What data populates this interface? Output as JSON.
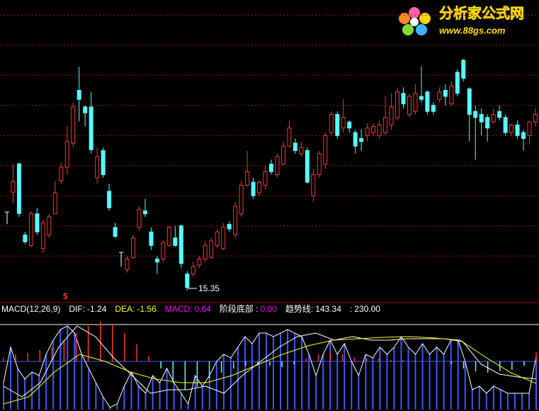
{
  "logo": {
    "title": "分析家公式网",
    "url": "www.88gs.com"
  },
  "chart_data": [
    {
      "type": "candlestick",
      "up_color": "#ff3232",
      "down_color": "#54ffff",
      "flat_color": "#ffffff",
      "ylim": [
        15,
        25
      ],
      "ygrid": [
        24.5,
        23.5,
        22.5,
        21.5,
        20.5,
        19.5,
        18.5,
        17.5,
        16.5
      ],
      "grid_color": "#a01010",
      "annotations": [
        {
          "text": "15.35"
        },
        {
          "text": "$"
        }
      ],
      "ohlc": [
        [
          17.96,
          17.96,
          17.56,
          17.96
        ],
        [
          18.62,
          19.56,
          18.26,
          18.97
        ],
        [
          19.56,
          19.6,
          17.8,
          17.91
        ],
        [
          17.2,
          17.3,
          16.9,
          16.97
        ],
        [
          16.85,
          18.0,
          16.8,
          17.91
        ],
        [
          17.9,
          18.1,
          17.2,
          17.3
        ],
        [
          16.75,
          17.7,
          16.6,
          17.6
        ],
        [
          17.2,
          17.9,
          17.1,
          17.8
        ],
        [
          17.9,
          19.0,
          17.9,
          18.6
        ],
        [
          19.0,
          19.6,
          18.9,
          19.45
        ],
        [
          19.45,
          20.8,
          19.2,
          20.3
        ],
        [
          20.25,
          21.6,
          20.1,
          21.45
        ],
        [
          22.0,
          22.78,
          20.97,
          21.7
        ],
        [
          21.45,
          21.5,
          20.8,
          21.25
        ],
        [
          21.45,
          21.95,
          19.9,
          20.03
        ],
        [
          19.1,
          20.1,
          18.9,
          19.8
        ],
        [
          20.0,
          20.1,
          19.1,
          19.2
        ],
        [
          18.65,
          18.9,
          18.0,
          18.1
        ],
        [
          17.45,
          17.6,
          17.1,
          17.15
        ],
        [
          16.62,
          16.62,
          16.15,
          16.62
        ],
        [
          16.05,
          16.5,
          15.95,
          16.4
        ],
        [
          16.45,
          17.2,
          16.4,
          17.1
        ],
        [
          17.45,
          18.15,
          17.35,
          18.05
        ],
        [
          18.0,
          18.4,
          17.8,
          17.9
        ],
        [
          17.3,
          17.45,
          16.7,
          16.85
        ],
        [
          16.4,
          16.5,
          15.9,
          16.3
        ],
        [
          16.4,
          17.0,
          16.3,
          16.95
        ],
        [
          16.85,
          17.5,
          16.8,
          17.45
        ],
        [
          17.1,
          17.5,
          16.8,
          16.85
        ],
        [
          17.5,
          17.55,
          16.1,
          16.25
        ],
        [
          15.9,
          16.0,
          15.35,
          15.45
        ],
        [
          15.9,
          16.3,
          15.8,
          16.15
        ],
        [
          16.2,
          16.5,
          16.1,
          16.4
        ],
        [
          16.4,
          17.0,
          16.3,
          16.85
        ],
        [
          16.45,
          17.1,
          16.4,
          17.0
        ],
        [
          16.85,
          17.4,
          16.75,
          17.3
        ],
        [
          16.75,
          17.6,
          16.7,
          17.45
        ],
        [
          17.55,
          17.65,
          17.3,
          17.4
        ],
        [
          17.2,
          18.3,
          17.1,
          18.15
        ],
        [
          17.9,
          19.0,
          17.8,
          18.85
        ],
        [
          18.85,
          20.0,
          18.8,
          19.3
        ],
        [
          18.95,
          19.1,
          18.4,
          18.5
        ],
        [
          18.6,
          19.0,
          18.5,
          18.95
        ],
        [
          18.85,
          19.5,
          18.7,
          19.3
        ],
        [
          19.55,
          19.7,
          19.2,
          19.3
        ],
        [
          19.2,
          19.9,
          19.1,
          19.8
        ],
        [
          19.55,
          20.3,
          19.5,
          20.15
        ],
        [
          20.15,
          21.0,
          20.1,
          20.75
        ],
        [
          20.25,
          20.4,
          19.9,
          20.0
        ],
        [
          19.9,
          20.3,
          19.8,
          20.1
        ],
        [
          20.0,
          20.1,
          18.9,
          18.95
        ],
        [
          18.5,
          19.4,
          18.3,
          19.2
        ],
        [
          19.2,
          20.0,
          19.1,
          19.9
        ],
        [
          19.55,
          20.6,
          19.4,
          20.5
        ],
        [
          20.6,
          21.3,
          20.5,
          21.2
        ],
        [
          21.2,
          21.3,
          20.4,
          20.5
        ],
        [
          20.75,
          21.7,
          20.6,
          21.1
        ],
        [
          20.95,
          21.0,
          20.6,
          20.75
        ],
        [
          20.6,
          20.7,
          19.9,
          20.15
        ],
        [
          20.4,
          20.7,
          20.0,
          20.3
        ],
        [
          20.5,
          20.9,
          20.3,
          20.75
        ],
        [
          20.6,
          20.9,
          20.5,
          20.8
        ],
        [
          20.5,
          21.0,
          20.4,
          20.85
        ],
        [
          20.6,
          21.8,
          20.5,
          21.1
        ],
        [
          20.85,
          21.9,
          20.7,
          21.45
        ],
        [
          21.1,
          22.1,
          21.0,
          21.95
        ],
        [
          21.9,
          22.1,
          21.4,
          21.55
        ],
        [
          21.2,
          21.9,
          21.1,
          21.8
        ],
        [
          21.3,
          22.2,
          21.2,
          21.9
        ],
        [
          21.8,
          22.8,
          21.6,
          21.7
        ],
        [
          21.95,
          22.0,
          21.2,
          21.3
        ],
        [
          21.5,
          21.6,
          21.2,
          21.3
        ],
        [
          21.7,
          22.1,
          21.6,
          21.95
        ],
        [
          22.0,
          22.2,
          21.5,
          21.8
        ],
        [
          21.55,
          22.3,
          21.5,
          22.15
        ],
        [
          22.6,
          22.7,
          21.8,
          21.9
        ],
        [
          23.0,
          23.05,
          22.3,
          22.4
        ],
        [
          22.05,
          22.1,
          20.3,
          21.2
        ],
        [
          21.3,
          21.5,
          19.7,
          21.1
        ],
        [
          21.2,
          21.4,
          20.5,
          20.95
        ],
        [
          21.1,
          21.2,
          20.3,
          20.75
        ],
        [
          20.95,
          21.4,
          20.9,
          21.2
        ],
        [
          21.3,
          21.5,
          21.0,
          21.1
        ],
        [
          21.1,
          21.2,
          20.5,
          20.6
        ],
        [
          20.6,
          20.9,
          20.5,
          20.85
        ],
        [
          20.85,
          21.0,
          20.4,
          20.5
        ],
        [
          20.6,
          20.7,
          20.0,
          20.4
        ],
        [
          20.5,
          21.0,
          20.2,
          20.95
        ],
        [
          20.95,
          21.4,
          20.8,
          21.2
        ]
      ]
    },
    {
      "type": "macd",
      "title": "MACD(12,26,9)",
      "ylim": [
        -3.4,
        4.0
      ],
      "trend_ylim": [
        0,
        283.7
      ],
      "series": [
        {
          "name": "DIF:",
          "kind": "line",
          "color": "#ffffff",
          "values": [
            -1.75,
            -2.5,
            -1.5,
            1.0,
            2.5,
            1.75,
            0.25,
            -1.0,
            -2.25,
            -2.0,
            -2.0,
            -1.75,
            -2.25,
            -1.0,
            0,
            1.0,
            1.75,
            2.0,
            1.5,
            1.75,
            1.5,
            1.5,
            1.6,
            1.6,
            1.6,
            1.4,
            -0.2,
            -0.9,
            -1.1,
            -1.24
          ]
        },
        {
          "name": "DEA:",
          "kind": "line",
          "color": "#ffff00",
          "values": [
            -3.0,
            -2.5,
            -0.75,
            0.5,
            0,
            -0.75,
            -1.25,
            -1.5,
            -1.5,
            -1.0,
            -0.25,
            0.5,
            1.1,
            1.5,
            1.6,
            1.7,
            1.75,
            1.65,
            1.5,
            0.3,
            -0.8,
            -1.56
          ]
        },
        {
          "name": "MACD:",
          "kind": "histogram",
          "color": "#ff00ff",
          "up_color": "#ff3232",
          "down_color": "#54ffff",
          "values": [
            0.3,
            0.5,
            0.6,
            0.8,
            1.0,
            1.5,
            2.0,
            2.5,
            2.8,
            2.6,
            2.0,
            1.2,
            0.4,
            -0.5,
            -1.5,
            -2.0,
            -1.8,
            -1.2,
            -0.8,
            -0.5,
            -0.3,
            -0.2,
            -0.3,
            -0.4,
            -0.2,
            0.2,
            0.5,
            0.6,
            0.5,
            0.3,
            0.2,
            0.2,
            0.1,
            0.1,
            0.1,
            0.0,
            0.0,
            -0.2,
            -0.5,
            -0.7,
            -0.8,
            -0.7,
            -0.6,
            -0.3,
            0.64
          ]
        },
        {
          "name": "阶段底部 :",
          "kind": "value",
          "name_color": "#ffffff",
          "color": "#ff00ff",
          "values": [
            0
          ],
          "value_labels": [
            "0.00"
          ]
        },
        {
          "name": "趋势线:",
          "kind": "trend",
          "color": "#3c5aff",
          "outline_color": "#ffffff",
          "text_color": "#ffffff",
          "values": [
            72.8,
            168.7,
            111.2,
            82.4,
            101.6,
            92.0,
            149.5,
            187.8,
            216.6,
            226.2,
            207.0,
            149.5,
            111.2,
            72.8,
            34.5,
            5.8,
            15.3,
            63.3,
            101.6,
            63.3,
            44.1,
            92.0,
            72.8,
            111.2,
            72.8,
            44.1,
            15.3,
            92.0,
            63.3,
            92.0,
            130.3,
            149.5,
            139.9,
            168.7,
            197.4,
            178.3,
            207.0,
            207.0,
            197.4,
            207.0,
            216.6,
            207.0,
            197.4,
            149.5,
            92.0,
            149.5,
            187.8,
            149.5,
            178.3,
            130.3,
            92.0,
            149.5,
            139.9,
            168.7,
            149.5,
            168.7,
            197.4,
            168.7,
            149.5,
            178.3,
            149.5,
            168.7,
            149.5,
            187.8,
            187.8,
            130.3,
            53.7,
            63.3,
            44.1,
            63.3,
            53.7,
            44.1,
            44.1,
            44.1,
            44.1,
            143.34
          ]
        },
        {
          "name": ":",
          "kind": "level",
          "color": "#ffffff",
          "values": [
            230
          ],
          "value_labels": [
            "230.00"
          ]
        }
      ]
    }
  ]
}
